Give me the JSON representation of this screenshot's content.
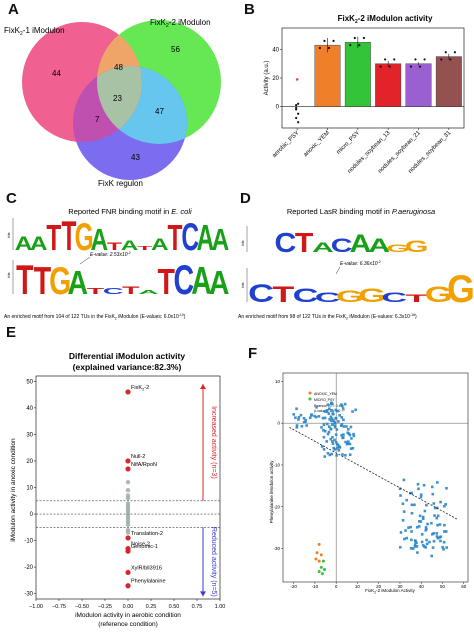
{
  "panels": {
    "A": "A",
    "B": "B",
    "C": "C",
    "D": "D",
    "E": "E",
    "F": "F"
  },
  "venn": {
    "set1_prefix": "FixK",
    "set1_sub": "2",
    "set1_suffix": "-1 iModulon",
    "set2_prefix": "FixK",
    "set2_sub": "2",
    "set2_suffix": "-2 iModulon",
    "set3_label": "FixK regulon",
    "counts": {
      "only1": "44",
      "only2": "56",
      "only3": "43",
      "ab": "48",
      "abc": "23",
      "bc": "47",
      "ac": "7"
    },
    "colors": {
      "set1": "#f06090",
      "set2": "#66e855",
      "set3": "#7b6cf0",
      "ab": "#efa468",
      "bc": "#66c6ee",
      "ac": "#c050b0",
      "abc": "#a8c2a6"
    }
  },
  "logos": {
    "c_title_prefix": "Reported FNR binding motif in ",
    "c_title_species": "E. coli",
    "c_top_sequence": "AATTGATATATCAA",
    "c_bottom_sequence": "TTGATCTATCAA",
    "c_evalue": "E-value: 2.53x10",
    "c_evalue_exp": "-2",
    "c_caption": "An enriched motif  from 104 of 122 TUs in the FixK",
    "c_caption_sub": "2",
    "c_caption_tail": " iModulon (E-values: 6.0x10",
    "c_caption_exp": "-10",
    "c_caption_end": ")",
    "d_title_prefix": "Reported LasR binding motif in ",
    "d_title_species": "P.aeruginosa",
    "d_top_sequence": "CTACAAGG",
    "d_bottom_sequence": "CTCCGGCTGG",
    "d_evalue": "E-value: 6.36x10",
    "d_evalue_exp": "-2",
    "d_caption": "An enriched motif  from 98 of 122 TUs in the FixK",
    "d_caption_sub": "2",
    "d_caption_tail": " iModulon (E-values: 6.3x10",
    "d_caption_exp": "-16",
    "d_caption_end": ")",
    "ylabel": "bits"
  },
  "chart_data": [
    {
      "type": "bar",
      "panel": "B",
      "title_prefix": "FixK",
      "title_sub": "2",
      "title_suffix": "-2 iModulon activity",
      "ylabel": "Activity (a.u.)",
      "ylim": [
        -15,
        55
      ],
      "yticks": [
        0,
        20,
        40
      ],
      "categories": [
        "aerobic_PSY",
        "anoxic_YEM",
        "micro_PSY",
        "nodules_soybean_13",
        "nodules_soybean_21",
        "nodules_soybean_31"
      ],
      "values": [
        0,
        43,
        45,
        30,
        30,
        35
      ],
      "colors": [
        "#ffffff",
        "#f07f2a",
        "#34c43a",
        "#e0242a",
        "#9a5fd0",
        "#955050"
      ],
      "aerobic_points": [
        -2,
        -5,
        -8,
        -11,
        -1,
        2,
        1
      ],
      "aerobic_outlier": 19,
      "error_bars": [
        0,
        5,
        4,
        2,
        1,
        2
      ]
    },
    {
      "type": "scatter",
      "panel": "E",
      "title": "Differential iModulon activity",
      "subtitle": "(explained variance:82.3%)",
      "xlabel": "iModulon activity in aerobic condition",
      "xlabel2": "(reference condition)",
      "ylabel": "iModulon activity in anoxic condition",
      "xlim": [
        -1.0,
        1.0
      ],
      "ylim": [
        -32,
        52
      ],
      "xticks": [
        "−1.00",
        "−0.75",
        "−0.50",
        "−0.25",
        "0.00",
        "0.25",
        "0.50",
        "0.75",
        "1.00"
      ],
      "xtick_values": [
        -1.0,
        -0.75,
        -0.5,
        -0.25,
        0.0,
        0.25,
        0.5,
        0.75,
        1.0
      ],
      "yticks": [
        50,
        40,
        30,
        20,
        10,
        0,
        -10,
        -20,
        -30
      ],
      "threshold_lines": [
        5,
        0,
        -5
      ],
      "highlighted": [
        {
          "label": "FixK",
          "sub": "2",
          "suffix": "-2",
          "y": 46
        },
        {
          "label": "Null-2",
          "sub": "",
          "suffix": "",
          "y": 20
        },
        {
          "label": "NifA/RpoN",
          "sub": "",
          "suffix": "",
          "y": 17
        },
        {
          "label": "Translation-2",
          "sub": "",
          "suffix": "",
          "y": -9
        },
        {
          "label": "Noise-2",
          "sub": "",
          "suffix": "",
          "y": -13
        },
        {
          "label": "Genomic-1",
          "sub": "",
          "suffix": "",
          "y": -14
        },
        {
          "label": "XylR/bll3916",
          "sub": "",
          "suffix": "",
          "y": -22
        },
        {
          "label": "Phenylalanine",
          "sub": "",
          "suffix": "",
          "y": -27
        }
      ],
      "gray_points": [
        12,
        9,
        7,
        6,
        4,
        3,
        2,
        1,
        0,
        -1,
        -2,
        -3,
        -4,
        -6,
        -7
      ],
      "increased_label": "Increased activity (n=3)",
      "reduced_label": "Reduced activity (n=5)",
      "up_color": "#e0242a",
      "down_color": "#3a3ad0"
    },
    {
      "type": "scatter",
      "panel": "F",
      "xlabel_prefix": "FixK",
      "xlabel_sub": "2",
      "xlabel_suffix": "-2 iModulon Activity",
      "ylabel": "Phenylalanine iModulon activity",
      "xlim": [
        -25,
        62
      ],
      "ylim": [
        -38,
        12
      ],
      "xticks": [
        -20,
        -10,
        0,
        10,
        20,
        30,
        40,
        50,
        60
      ],
      "yticks": [
        10,
        0,
        -10,
        -20,
        -30
      ],
      "legend": [
        "ANOXIC_YEM",
        "MICRO_PSY"
      ],
      "legend_note": "Pearson R² = 0.49",
      "legend_note2": "p-value = 1.1×10⁻¹⁰",
      "legend_colors": [
        "#f07f2a",
        "#34c43a"
      ],
      "main_color": "#2b86c6",
      "regression": {
        "x1": -22,
        "y1": -1,
        "x2": 57,
        "y2": -23
      },
      "orange_points": [
        [
          -8,
          -29
        ],
        [
          -9,
          -31
        ],
        [
          -7,
          -31.5
        ],
        [
          -9.5,
          -32.5
        ],
        [
          -8,
          -33
        ]
      ],
      "green_points": [
        [
          -6,
          -33
        ],
        [
          -7,
          -34.5
        ],
        [
          -5.5,
          -35
        ],
        [
          -8,
          -35.5
        ],
        [
          -6.5,
          -36
        ]
      ]
    }
  ]
}
